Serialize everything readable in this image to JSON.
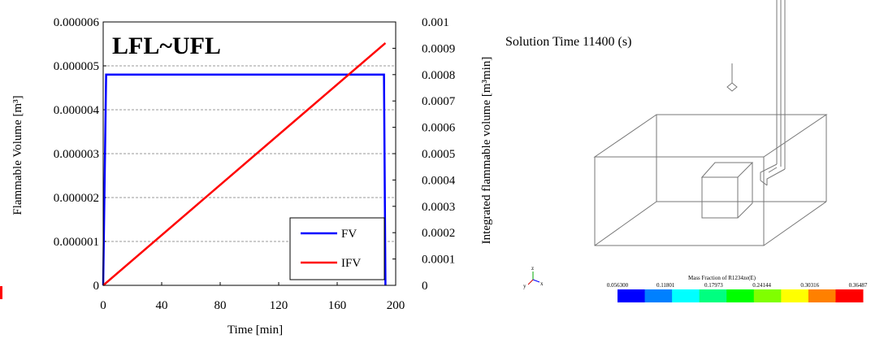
{
  "chart_data": {
    "type": "line",
    "title": "",
    "annotation": "LFL~UFL",
    "xlabel": "Time [min]",
    "ylabel": "Flammable Volume [m³]",
    "y2label": "Integrated flammable volume [m³min]",
    "xlim": [
      0,
      200
    ],
    "ylim": [
      0,
      6e-06
    ],
    "y2lim": [
      0,
      0.001
    ],
    "x_ticks": [
      "0",
      "40",
      "80",
      "120",
      "160",
      "200"
    ],
    "y_ticks": [
      "0",
      "0.000001",
      "0.000002",
      "0.000003",
      "0.000004",
      "0.000005",
      "0.000006"
    ],
    "y2_ticks": [
      "0",
      "0.0001",
      "0.0002",
      "0.0003",
      "0.0004",
      "0.0005",
      "0.0006",
      "0.0007",
      "0.0008",
      "0.0009",
      "0.001"
    ],
    "grid": "horizontal dashed",
    "legend_position": "bottom-right",
    "series": [
      {
        "name": "FV",
        "axis": "left",
        "color": "#0000ff",
        "x": [
          0,
          2,
          192,
          193
        ],
        "y": [
          0,
          4.8e-06,
          4.8e-06,
          0
        ]
      },
      {
        "name": "IFV",
        "axis": "right",
        "color": "#ff0000",
        "x": [
          0,
          193
        ],
        "y": [
          0,
          0.00092
        ]
      }
    ]
  },
  "contour_panel": {
    "solution_time": "Solution Time 11400 (s)",
    "colorbar_title": "Mass Fraction of R1234ze(E)",
    "colorbar_ticks": [
      "0.056300",
      "0.11801",
      "0.17973",
      "0.24144",
      "0.30316",
      "0.36487"
    ],
    "colorbar_colors": [
      "#0000ff",
      "#0080ff",
      "#00ffff",
      "#00ff80",
      "#00ff00",
      "#80ff00",
      "#ffff00",
      "#ff8000",
      "#ff0000"
    ],
    "axis_triad": [
      "z",
      "x",
      "y"
    ]
  }
}
